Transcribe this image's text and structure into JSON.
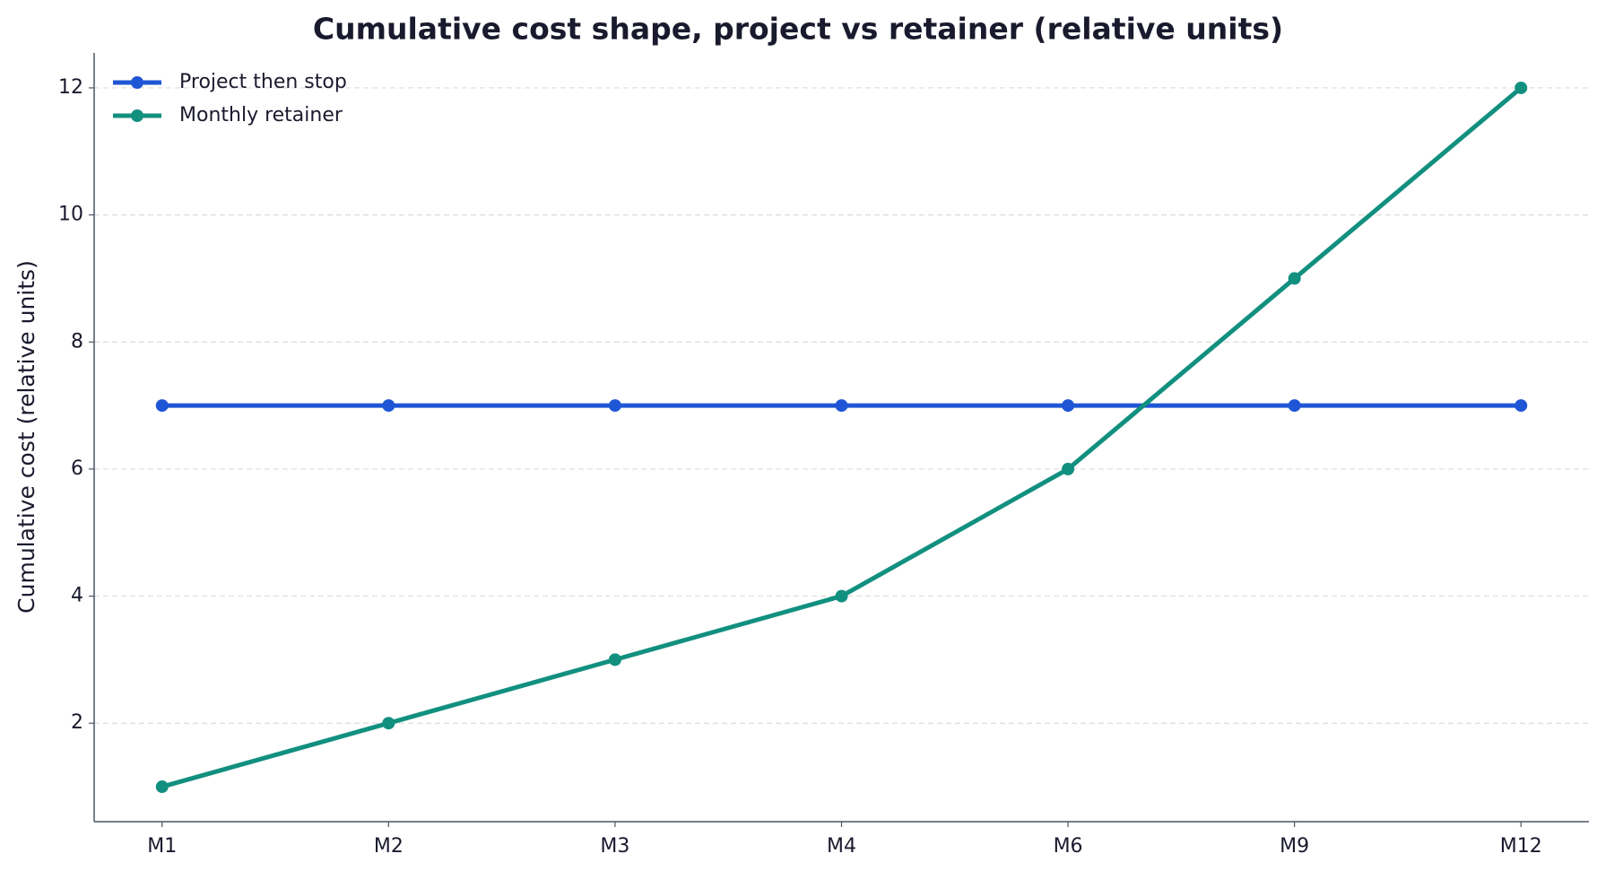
{
  "chart_data": {
    "type": "line",
    "title": "Cumulative cost shape, project vs retainer (relative units)",
    "y_label": "Cumulative cost (relative units)",
    "categories": [
      "M1",
      "M2",
      "M3",
      "M4",
      "M6",
      "M9",
      "M12"
    ],
    "series": [
      {
        "name": "Project then stop",
        "color": "#1f56d6",
        "values": [
          7,
          7,
          7,
          7,
          7,
          7,
          7
        ]
      },
      {
        "name": "Monthly retainer",
        "color": "#12907f",
        "values": [
          1,
          2,
          3,
          4,
          6,
          9,
          12
        ]
      }
    ],
    "ylim": [
      0.45,
      12.55
    ],
    "yticks": [
      2,
      4,
      6,
      8,
      10,
      12
    ],
    "grid": true,
    "legend": "upper-left"
  }
}
